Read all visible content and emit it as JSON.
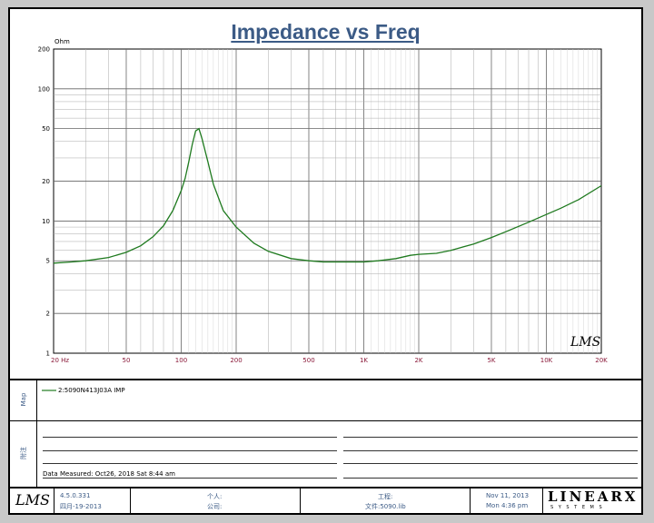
{
  "chart_data": {
    "type": "line",
    "title": "Impedance vs Freq",
    "ylabel_unit": "Ohm",
    "xscale": "log",
    "yscale": "log",
    "xlim": [
      20,
      20000
    ],
    "ylim": [
      1,
      200
    ],
    "x_ticks": [
      {
        "v": 20,
        "label": "20 Hz"
      },
      {
        "v": 50,
        "label": "50"
      },
      {
        "v": 100,
        "label": "100"
      },
      {
        "v": 200,
        "label": "200"
      },
      {
        "v": 500,
        "label": "500"
      },
      {
        "v": 1000,
        "label": "1K"
      },
      {
        "v": 2000,
        "label": "2K"
      },
      {
        "v": 5000,
        "label": "5K"
      },
      {
        "v": 10000,
        "label": "10K"
      },
      {
        "v": 20000,
        "label": "20K"
      }
    ],
    "y_ticks": [
      {
        "v": 200,
        "label": "200"
      },
      {
        "v": 100,
        "label": "100"
      },
      {
        "v": 50,
        "label": "50"
      },
      {
        "v": 20,
        "label": "20"
      },
      {
        "v": 10,
        "label": "10"
      },
      {
        "v": 5,
        "label": "5"
      },
      {
        "v": 2,
        "label": "2"
      },
      {
        "v": 1,
        "label": "1"
      }
    ],
    "grid": true,
    "series": [
      {
        "name": "2:5090N413J03A IMP",
        "color": "#1f7a1f",
        "x": [
          20,
          25,
          30,
          40,
          50,
          60,
          70,
          80,
          90,
          100,
          105,
          110,
          115,
          120,
          125,
          130,
          140,
          150,
          170,
          200,
          250,
          300,
          400,
          500,
          600,
          700,
          800,
          1000,
          1200,
          1500,
          1800,
          2000,
          2500,
          3000,
          4000,
          5000,
          6000,
          8000,
          10000,
          12000,
          15000,
          20000
        ],
        "y": [
          4.8,
          4.9,
          5.0,
          5.3,
          5.8,
          6.5,
          7.6,
          9.2,
          12,
          17,
          21,
          28,
          38,
          48,
          50,
          42,
          28,
          19,
          12,
          9.0,
          6.8,
          5.9,
          5.2,
          5.0,
          4.9,
          4.9,
          4.9,
          4.9,
          5.0,
          5.2,
          5.5,
          5.6,
          5.7,
          6.0,
          6.7,
          7.5,
          8.3,
          9.8,
          11.2,
          12.5,
          14.5,
          18.5
        ]
      }
    ]
  },
  "legend_panel": {
    "label": "Map",
    "entry": "2:5090N413J03A IMP"
  },
  "notes_panel": {
    "label": "附注",
    "date_measured": "Data Measured: Oct26, 2018  Sat 8:44 am"
  },
  "footer": {
    "logo_text": "LMS",
    "version": "4.5.0.331",
    "version_date": "四月-19-2013",
    "person_label": "个人:",
    "company_label": "公司:",
    "project_label": "工程:",
    "file_label": "文件:5090.lib",
    "date": "Nov 11, 2013",
    "time": "Mon 4:36 pm",
    "brand_text": "LINEARX",
    "brand_sub": "S Y S T E M S"
  },
  "watermark": "LMS"
}
